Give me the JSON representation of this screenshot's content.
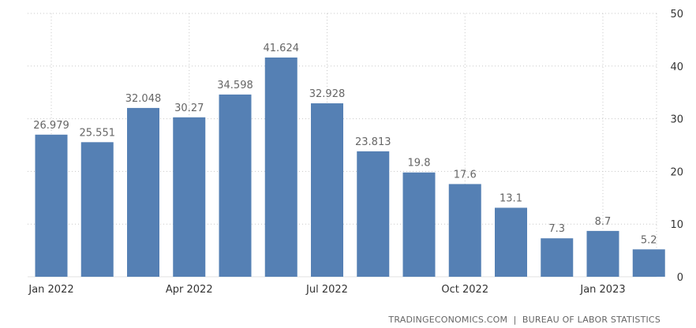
{
  "chart_data": {
    "type": "bar",
    "categories": [
      "Jan 2022",
      "Feb 2022",
      "Mar 2022",
      "Apr 2022",
      "May 2022",
      "Jun 2022",
      "Jul 2022",
      "Aug 2022",
      "Sep 2022",
      "Oct 2022",
      "Nov 2022",
      "Dec 2022",
      "Jan 2023",
      "Feb 2023"
    ],
    "values": [
      26.979,
      25.551,
      32.048,
      30.27,
      34.598,
      41.624,
      32.928,
      23.813,
      19.8,
      17.6,
      13.1,
      7.3,
      8.7,
      5.2
    ],
    "value_labels": [
      "26.979",
      "25.551",
      "32.048",
      "30.27",
      "34.598",
      "41.624",
      "32.928",
      "23.813",
      "19.8",
      "17.6",
      "13.1",
      "7.3",
      "8.7",
      "5.2"
    ],
    "x_tick_labels": [
      {
        "category_index": 0,
        "label": "Jan 2022"
      },
      {
        "category_index": 3,
        "label": "Apr 2022"
      },
      {
        "category_index": 6,
        "label": "Jul 2022"
      },
      {
        "category_index": 9,
        "label": "Oct 2022"
      },
      {
        "category_index": 12,
        "label": "Jan 2023"
      }
    ],
    "y_ticks": [
      0,
      10,
      20,
      30,
      40,
      50
    ],
    "ylim": [
      0,
      50
    ],
    "title": "",
    "xlabel": "",
    "ylabel": "",
    "grid": true,
    "y_axis_side": "right",
    "bar_color": "#5580b4"
  },
  "source_text": "TRADINGECONOMICS.COM  |  BUREAU OF LABOR STATISTICS"
}
